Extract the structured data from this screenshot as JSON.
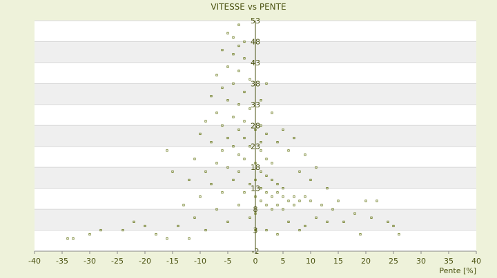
{
  "chart_data": {
    "type": "scatter",
    "title": "VITESSE vs PENTE",
    "x_label": "Pente [%]",
    "color": "#6b7a1e",
    "xlim": [
      -40,
      40
    ],
    "xticks": [
      -40,
      -35,
      -30,
      -25,
      -20,
      -15,
      -10,
      -5,
      0,
      5,
      10,
      15,
      20,
      25,
      30,
      35,
      40
    ],
    "ylim": [
      -2,
      53
    ],
    "yticks": [
      -2,
      3,
      8,
      13,
      18,
      23,
      28,
      33,
      38,
      43,
      48,
      53
    ],
    "grid": true,
    "x": [
      -5,
      -4,
      -3,
      -6,
      -4,
      -2,
      -5,
      -3,
      -7,
      -1,
      -4,
      -6,
      -2,
      -8,
      -5,
      -3,
      -1,
      -7,
      -4,
      -9,
      -2,
      -6,
      -3,
      0,
      1,
      -10,
      -5,
      -2,
      -8,
      -4,
      -1,
      1,
      -6,
      -3,
      -11,
      -7,
      -2,
      0,
      -5,
      -9,
      -3,
      -16,
      -15,
      -12,
      -8,
      -4,
      -6,
      -10,
      -2,
      -13,
      -7,
      -3,
      -11,
      -5,
      -1,
      -14,
      -9,
      -20,
      -24,
      -28,
      -30,
      -34,
      -33,
      -18,
      -16,
      -22,
      -12,
      1,
      2,
      3,
      1,
      2,
      3,
      4,
      5,
      1,
      2,
      3,
      4,
      5,
      6,
      7,
      1,
      2,
      4,
      3,
      5,
      7,
      8,
      9,
      10,
      12,
      14,
      15,
      18,
      20,
      22,
      21,
      24,
      25,
      26,
      19,
      13,
      11,
      16,
      9,
      6,
      8,
      4,
      2,
      3,
      5,
      7,
      6,
      9,
      11,
      8,
      10,
      13,
      0,
      0,
      0,
      0,
      -1,
      2,
      4,
      1,
      2,
      -2,
      -3
    ],
    "values": [
      50,
      49,
      47,
      46,
      45,
      44,
      42,
      41,
      40,
      39,
      38,
      37,
      36,
      35,
      34,
      33,
      32,
      31,
      30,
      29,
      29,
      28,
      27,
      27,
      28,
      26,
      25,
      25,
      24,
      23,
      23,
      24,
      22,
      21,
      20,
      19,
      20,
      19,
      18,
      17,
      17,
      22,
      17,
      15,
      14,
      15,
      12,
      11,
      12,
      9,
      8,
      9,
      6,
      5,
      6,
      4,
      3,
      4,
      3,
      3,
      2,
      1,
      1,
      2,
      1,
      5,
      1,
      22,
      20,
      19,
      17,
      16,
      15,
      14,
      13,
      13,
      12,
      11,
      12,
      11,
      10,
      11,
      10,
      9,
      9,
      8,
      8,
      9,
      10,
      11,
      10,
      9,
      8,
      10,
      7,
      10,
      10,
      6,
      5,
      4,
      2,
      2,
      5,
      6,
      5,
      4,
      5,
      3,
      2,
      3,
      31,
      27,
      25,
      22,
      21,
      18,
      17,
      15,
      13,
      15,
      11,
      7,
      3,
      14,
      26,
      24,
      34,
      38,
      48,
      52
    ]
  }
}
